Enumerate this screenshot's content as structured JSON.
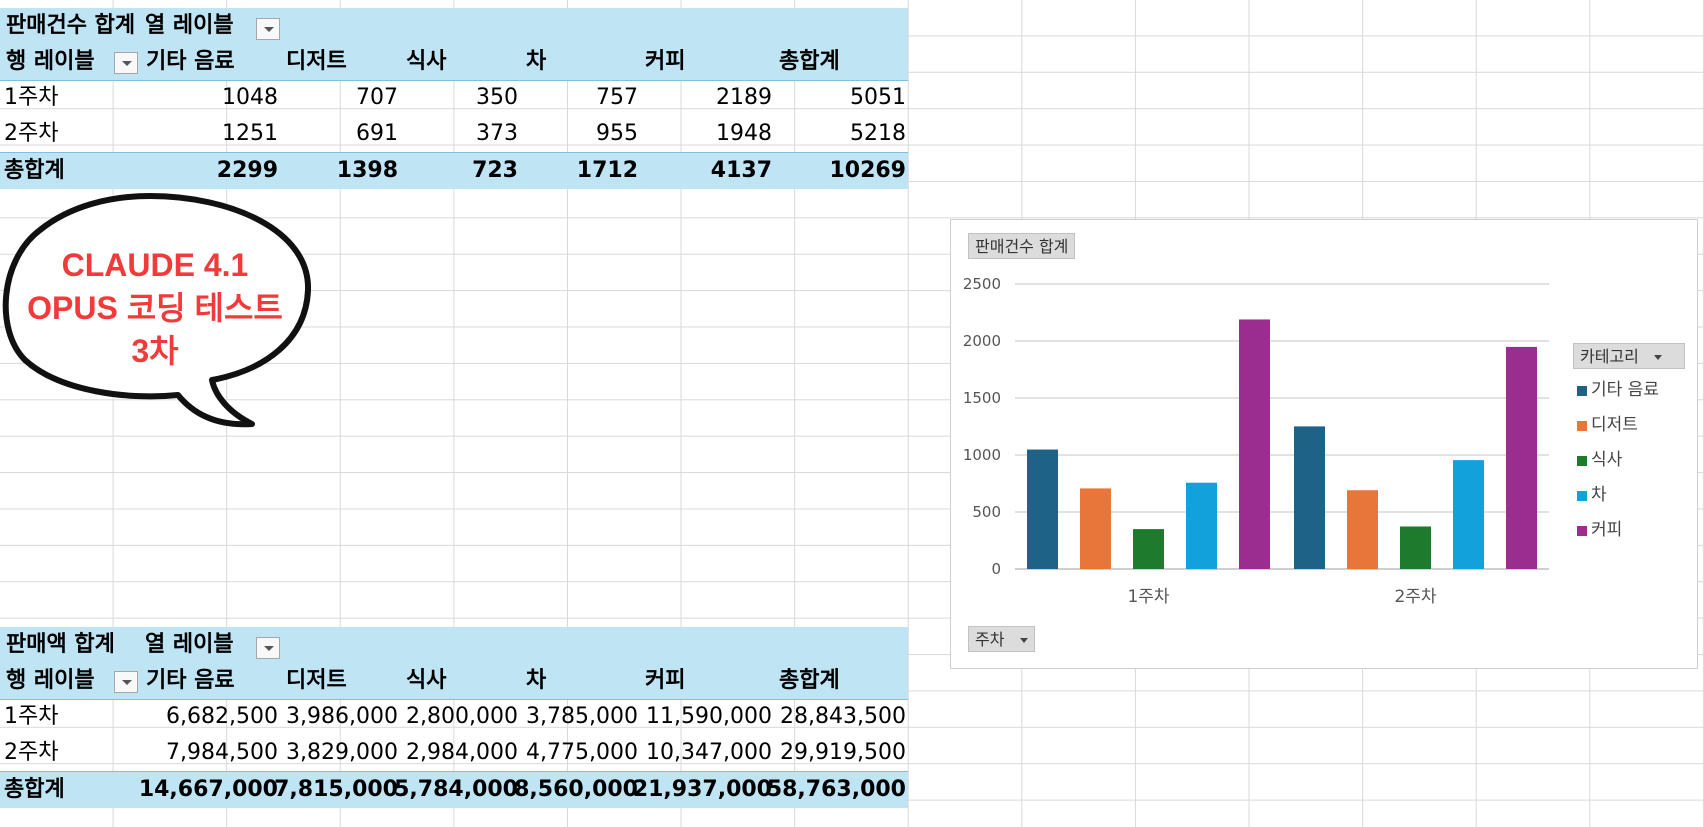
{
  "pivot1": {
    "header_label": "판매건수 합계",
    "col_labels_label": "열 레이블",
    "row_labels_label": "행 레이블",
    "columns": [
      "기타 음료",
      "디저트",
      "식사",
      "차",
      "커피",
      "총합계"
    ],
    "rows": [
      {
        "label": "1주차",
        "values": [
          "1048",
          "707",
          "350",
          "757",
          "2189",
          "5051"
        ]
      },
      {
        "label": "2주차",
        "values": [
          "1251",
          "691",
          "373",
          "955",
          "1948",
          "5218"
        ]
      }
    ],
    "total": {
      "label": "총합계",
      "values": [
        "2299",
        "1398",
        "723",
        "1712",
        "4137",
        "10269"
      ]
    }
  },
  "pivot2": {
    "header_label": "판매액 합계",
    "col_labels_label": "열 레이블",
    "row_labels_label": "행 레이블",
    "columns": [
      "기타 음료",
      "디저트",
      "식사",
      "차",
      "커피",
      "총합계"
    ],
    "rows": [
      {
        "label": "1주차",
        "values": [
          "6,682,500",
          "3,986,000",
          "2,800,000",
          "3,785,000",
          "11,590,000",
          "28,843,500"
        ]
      },
      {
        "label": "2주차",
        "values": [
          "7,984,500",
          "3,829,000",
          "2,984,000",
          "4,775,000",
          "10,347,000",
          "29,919,500"
        ]
      }
    ],
    "total": {
      "label": "총합계",
      "values": [
        "14,667,000",
        "7,815,000",
        "5,784,000",
        "8,560,000",
        "21,937,000",
        "58,763,000"
      ]
    }
  },
  "bubble": {
    "line1": "CLAUDE 4.1",
    "line2": "OPUS 코딩 테스트",
    "line3": "3차",
    "color": "#f13a3a"
  },
  "chart_buttons": {
    "values_button": "판매건수 합계",
    "legend_button": "카테고리",
    "axis_button": "주차"
  },
  "chart_data": {
    "type": "bar",
    "categories": [
      "1주차",
      "2주차"
    ],
    "series": [
      {
        "name": "기타 음료",
        "values": [
          1048,
          1251
        ],
        "color": "#1f6287"
      },
      {
        "name": "디저트",
        "values": [
          707,
          691
        ],
        "color": "#e8763a"
      },
      {
        "name": "식사",
        "values": [
          350,
          373
        ],
        "color": "#1e7a2c"
      },
      {
        "name": "차",
        "values": [
          757,
          955
        ],
        "color": "#13a1db"
      },
      {
        "name": "커피",
        "values": [
          2189,
          1948
        ],
        "color": "#9b2d91"
      }
    ],
    "ylim": [
      0,
      2500
    ],
    "yticks": [
      0,
      500,
      1000,
      1500,
      2000,
      2500
    ],
    "grid": true,
    "legend_position": "right"
  }
}
